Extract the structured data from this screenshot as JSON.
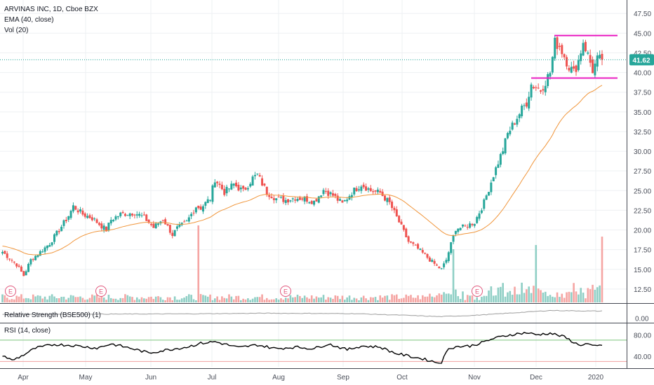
{
  "legend": {
    "title": "ARVINAS INC, 1D, Cboe BZX",
    "ema": "EMA (40, close)",
    "vol": "Vol (20)",
    "rs": "Relative Strength (BSE500) (1)",
    "rsi": "RSI (14, close)"
  },
  "last_price_label": "41.62",
  "colors": {
    "up": "#26a69a",
    "down": "#ef5350",
    "vol_up": "#8fcfc5",
    "vol_down": "#f5a5a3",
    "ema": "#f0953a",
    "level_lines": "#e91ec2",
    "last_price": "#26a69a",
    "rsi_upper": "#7cc47c",
    "rsi_lower": "#f0a0a0",
    "rs_line": "#9e9e9e",
    "rsi_line": "#000000",
    "earnings": "#e0557a"
  },
  "earnings_markers": [
    "E",
    "E",
    "E",
    "E"
  ],
  "chart_data": {
    "type": "candlestick",
    "x_labels": [
      "Apr",
      "May",
      "Jun",
      "Jul",
      "Aug",
      "Sep",
      "Oct",
      "Nov",
      "Dec",
      "2020"
    ],
    "price_axis": {
      "ticks": [
        "12.50",
        "15.00",
        "17.50",
        "20.00",
        "22.50",
        "25.00",
        "27.50",
        "30.00",
        "32.50",
        "35.00",
        "37.50",
        "40.00",
        "42.50",
        "45.00",
        "47.50"
      ],
      "range": [
        10.8,
        48.5
      ]
    },
    "last_price": 41.62,
    "horizontal_levels": [
      44.7,
      39.3
    ],
    "price_anchors": [
      [
        0,
        17.2
      ],
      [
        6,
        15.6
      ],
      [
        9,
        14.2
      ],
      [
        12,
        16.2
      ],
      [
        16,
        17.2
      ],
      [
        20,
        18.3
      ],
      [
        24,
        20.0
      ],
      [
        28,
        21.8
      ],
      [
        30,
        23.0
      ],
      [
        34,
        22.0
      ],
      [
        38,
        21.5
      ],
      [
        42,
        20.5
      ],
      [
        44,
        20.0
      ],
      [
        46,
        21.3
      ],
      [
        50,
        22.0
      ],
      [
        56,
        22.2
      ],
      [
        60,
        21.6
      ],
      [
        64,
        20.3
      ],
      [
        68,
        21.4
      ],
      [
        72,
        19.4
      ],
      [
        74,
        20.2
      ],
      [
        78,
        21.0
      ],
      [
        82,
        23.0
      ],
      [
        84,
        22.8
      ],
      [
        88,
        24.0
      ],
      [
        90,
        26.5
      ],
      [
        94,
        24.8
      ],
      [
        98,
        25.8
      ],
      [
        102,
        24.9
      ],
      [
        106,
        26.6
      ],
      [
        108,
        27.0
      ],
      [
        112,
        24.8
      ],
      [
        116,
        24.0
      ],
      [
        120,
        23.8
      ],
      [
        124,
        24.1
      ],
      [
        128,
        24.0
      ],
      [
        132,
        23.6
      ],
      [
        136,
        25.1
      ],
      [
        140,
        24.4
      ],
      [
        144,
        23.3
      ],
      [
        148,
        24.8
      ],
      [
        152,
        25.8
      ],
      [
        156,
        25.0
      ],
      [
        160,
        24.7
      ],
      [
        164,
        23.4
      ],
      [
        168,
        21.0
      ],
      [
        172,
        18.5
      ],
      [
        176,
        17.6
      ],
      [
        180,
        16.5
      ],
      [
        184,
        15.4
      ],
      [
        186,
        15.0
      ],
      [
        188,
        16.2
      ],
      [
        190,
        18.2
      ],
      [
        192,
        20.2
      ],
      [
        196,
        20.4
      ],
      [
        200,
        21.0
      ],
      [
        204,
        23.5
      ],
      [
        208,
        27.0
      ],
      [
        212,
        30.2
      ],
      [
        214,
        32.2
      ],
      [
        218,
        34.3
      ],
      [
        220,
        35.3
      ],
      [
        222,
        36.2
      ],
      [
        224,
        38.5
      ],
      [
        228,
        37.8
      ],
      [
        232,
        40.0
      ],
      [
        234,
        43.8
      ],
      [
        236,
        43.4
      ],
      [
        240,
        40.8
      ],
      [
        242,
        40.0
      ],
      [
        244,
        41.5
      ],
      [
        246,
        44.0
      ],
      [
        248,
        42.2
      ],
      [
        250,
        40.3
      ],
      [
        252,
        41.6
      ]
    ],
    "ema_period": 40,
    "ema_seed": 18.0,
    "volume_spikes": [
      [
        85,
        80
      ],
      [
        195,
        46
      ],
      [
        231,
        52
      ],
      [
        260,
        64
      ]
    ],
    "relative_strength_axis": {
      "ticks": [
        "0.00"
      ],
      "range": [
        -0.03,
        0.08
      ]
    },
    "relative_strength_anchors": [
      [
        0,
        0.025
      ],
      [
        40,
        0.026
      ],
      [
        80,
        0.028
      ],
      [
        110,
        0.032
      ],
      [
        130,
        0.031
      ],
      [
        150,
        0.029
      ],
      [
        170,
        0.019
      ],
      [
        185,
        0.01
      ],
      [
        200,
        0.018
      ],
      [
        215,
        0.033
      ],
      [
        232,
        0.05
      ],
      [
        252,
        0.046
      ]
    ],
    "rsi_axis": {
      "ticks": [
        "40.00",
        "80.00"
      ],
      "range": [
        20,
        100
      ]
    },
    "rsi_bands": [
      70,
      30
    ],
    "rsi_anchors": [
      [
        0,
        42
      ],
      [
        4,
        32
      ],
      [
        8,
        40
      ],
      [
        14,
        55
      ],
      [
        22,
        62
      ],
      [
        30,
        60
      ],
      [
        40,
        55
      ],
      [
        46,
        63
      ],
      [
        55,
        54
      ],
      [
        62,
        46
      ],
      [
        70,
        52
      ],
      [
        78,
        57
      ],
      [
        84,
        64
      ],
      [
        90,
        67
      ],
      [
        100,
        56
      ],
      [
        108,
        61
      ],
      [
        116,
        54
      ],
      [
        124,
        57
      ],
      [
        132,
        54
      ],
      [
        138,
        63
      ],
      [
        146,
        52
      ],
      [
        152,
        59
      ],
      [
        160,
        57
      ],
      [
        166,
        46
      ],
      [
        172,
        40
      ],
      [
        178,
        35
      ],
      [
        184,
        28
      ],
      [
        186,
        29
      ],
      [
        189,
        55
      ],
      [
        193,
        58
      ],
      [
        198,
        59
      ],
      [
        203,
        65
      ],
      [
        208,
        73
      ],
      [
        215,
        80
      ],
      [
        222,
        84
      ],
      [
        226,
        80
      ],
      [
        232,
        83
      ],
      [
        238,
        76
      ],
      [
        244,
        61
      ],
      [
        248,
        63
      ],
      [
        250,
        58
      ],
      [
        254,
        60
      ]
    ]
  }
}
